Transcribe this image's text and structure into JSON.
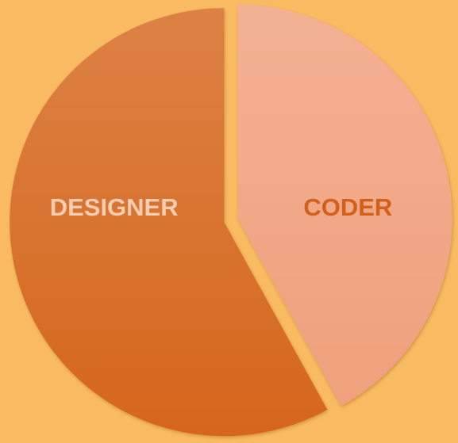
{
  "chart_data": {
    "type": "pie",
    "categories": [
      "DESIGNER",
      "CODER"
    ],
    "values": [
      58,
      42
    ],
    "colors": [
      "#d5661f",
      "#f0a07c"
    ],
    "label_colors": [
      "#f8cdb0",
      "#d2601a"
    ],
    "start": "top",
    "direction": "counterclockwise-first",
    "exploded": true
  }
}
